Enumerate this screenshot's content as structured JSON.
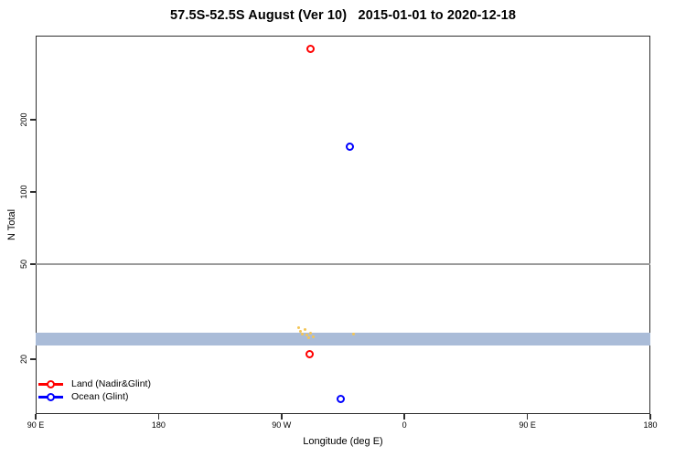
{
  "chart_data": {
    "type": "scatter",
    "title": "57.5S-52.5S August (Ver 10)   2015-01-01 to 2020-12-18",
    "xlabel": "Longitude (deg E)",
    "ylabel": "N Total",
    "y_scale": "log",
    "y_domain": [
      11.8,
      450
    ],
    "x_domain": [
      0,
      450
    ],
    "x_ticks": [
      {
        "pos": 0,
        "label": "90 E"
      },
      {
        "pos": 90,
        "label": "180"
      },
      {
        "pos": 180,
        "label": "90 W"
      },
      {
        "pos": 270,
        "label": "0"
      },
      {
        "pos": 360,
        "label": "90 E"
      },
      {
        "pos": 450,
        "label": "180"
      }
    ],
    "y_ticks": [
      {
        "value": 20,
        "label": "20"
      },
      {
        "value": 50,
        "label": "50"
      },
      {
        "value": 100,
        "label": "100"
      },
      {
        "value": 200,
        "label": "200"
      }
    ],
    "reference_line": {
      "value": 50,
      "color": "#9b9b9b"
    },
    "band": {
      "low": 22.8,
      "high": 25.8,
      "color": "#aabcd8"
    },
    "series": [
      {
        "name": "Land (Nadir&Glint)",
        "color": "#ff0000",
        "marker": "open-circle",
        "marker_size": 9,
        "points": [
          {
            "x": 201.5,
            "approx_lon": "68.5 W",
            "n": 395
          },
          {
            "x": 200.5,
            "approx_lon": "69 W",
            "n": 21
          }
        ]
      },
      {
        "name": "Ocean (Glint)",
        "color": "#0000ff",
        "marker": "open-circle",
        "marker_size": 9,
        "points": [
          {
            "x": 229.7,
            "approx_lon": "40 W",
            "n": 155
          },
          {
            "x": 223.4,
            "approx_lon": "46.5 W",
            "n": 13.7
          }
        ]
      },
      {
        "name": "small-orange-specks",
        "color": "#f3c556",
        "marker": "dot",
        "marker_size": 3,
        "points": [
          {
            "x": 192.5,
            "n": 27.0
          },
          {
            "x": 194.0,
            "n": 26.2
          },
          {
            "x": 195.5,
            "n": 25.4
          },
          {
            "x": 197.0,
            "n": 26.6
          },
          {
            "x": 198.5,
            "n": 25.2
          },
          {
            "x": 200.0,
            "n": 24.6
          },
          {
            "x": 201.5,
            "n": 25.7
          },
          {
            "x": 203.0,
            "n": 24.9
          },
          {
            "x": 233.0,
            "n": 25.5
          }
        ]
      }
    ],
    "legend": {
      "position": "bottom-left",
      "entries": [
        {
          "label": "Land (Nadir&Glint)",
          "color": "#ff0000"
        },
        {
          "label": "Ocean (Glint)",
          "color": "#0000ff"
        }
      ]
    },
    "grid": "off",
    "frame_color": "#2e2e2e"
  }
}
